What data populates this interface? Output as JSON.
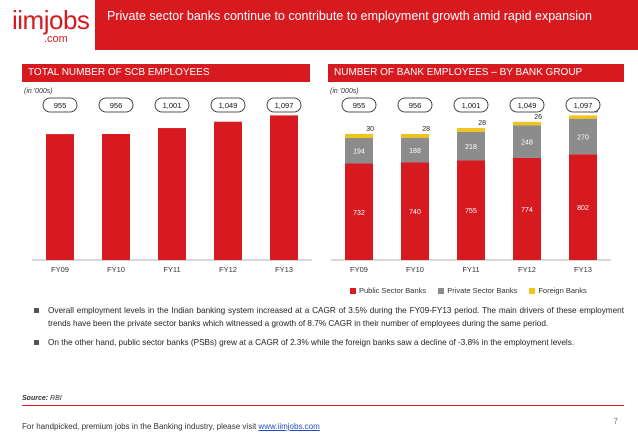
{
  "header": {
    "logo_main": "iimjobs",
    "logo_sub": ".com",
    "title": "Private sector banks continue to contribute to employment growth amid rapid expansion"
  },
  "left_panel": {
    "header": "TOTAL NUMBER OF SCB EMPLOYEES",
    "unit": "(in '000s)"
  },
  "right_panel": {
    "header": "NUMBER OF BANK EMPLOYEES – BY BANK GROUP",
    "unit": "(in '000s)"
  },
  "colors": {
    "brand_red": "#d71920",
    "private_gray": "#8c8c8c",
    "foreign_yellow": "#f2c318"
  },
  "chart_data": [
    {
      "type": "bar",
      "title": "TOTAL NUMBER OF SCB EMPLOYEES",
      "categories": [
        "FY09",
        "FY10",
        "FY11",
        "FY12",
        "FY13"
      ],
      "values": [
        955,
        956,
        1001,
        1049,
        1097
      ],
      "labels": [
        "955",
        "956",
        "1,001",
        "1,049",
        "1,097"
      ],
      "ylim": [
        0,
        1100
      ]
    },
    {
      "type": "bar",
      "stacked": true,
      "title": "NUMBER OF BANK EMPLOYEES – BY BANK GROUP",
      "categories": [
        "FY09",
        "FY10",
        "FY11",
        "FY12",
        "FY13"
      ],
      "totals": [
        "955",
        "956",
        "1,001",
        "1,049",
        "1,097"
      ],
      "series": [
        {
          "name": "Public Sector Banks",
          "values": [
            732,
            740,
            755,
            774,
            802
          ]
        },
        {
          "name": "Private Sector Banks",
          "values": [
            194,
            188,
            218,
            248,
            270
          ]
        },
        {
          "name": "Foreign Banks",
          "values": [
            30,
            28,
            28,
            26,
            25
          ]
        }
      ],
      "ylim": [
        0,
        1100
      ],
      "legend": "bottom"
    }
  ],
  "bullets": [
    "Overall employment levels in the Indian banking system increased at a CAGR of 3.5% during the FY09-FY13 period. The main drivers of these employment trends have been the private sector banks which witnessed a growth of 8.7% CAGR in their number of employees during the same period.",
    "On the other hand, public sector banks (PSBs) grew at a CAGR of 2.3% while the foreign banks saw a decline of -3.8% in the employment levels."
  ],
  "source": {
    "label": "Source:",
    "text": "RBI"
  },
  "footer": {
    "text": "For handpicked, premium jobs in the Banking industry, please visit ",
    "link": "www.iimjobs.com"
  },
  "page_number": "7"
}
